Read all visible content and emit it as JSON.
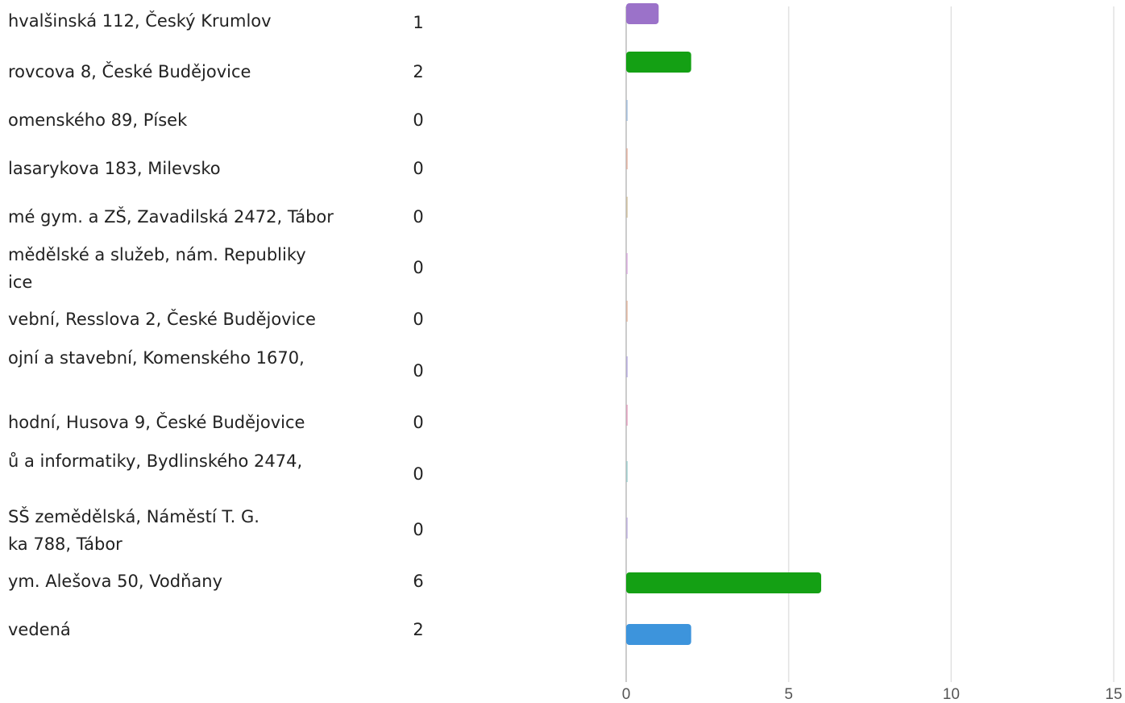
{
  "chart_data": {
    "type": "bar",
    "orientation": "horizontal",
    "categories": [
      [
        "hvalšinská 112, Český Krumlov"
      ],
      [
        "rovcova 8, České Budějovice"
      ],
      [
        "omenského 89, Písek"
      ],
      [
        "lasarykova 183, Milevsko"
      ],
      [
        "mé gym. a ZŠ, Zavadilská 2472, Tábor"
      ],
      [
        "mědělské a služeb, nám. Republiky",
        "ice"
      ],
      [
        "vební, Resslova 2, České Budějovice"
      ],
      [
        "ojní a stavební, Komenského 1670,"
      ],
      [
        "hodní, Husova 9, České Budějovice"
      ],
      [
        "ů a informatiky, Bydlinského 2474,"
      ],
      [
        "SŠ zemědělská, Náměstí T. G.",
        "ka 788, Tábor"
      ],
      [
        "ym. Alešova 50, Vodňany"
      ],
      [
        "vedená"
      ]
    ],
    "values": [
      1,
      2,
      0,
      0,
      0,
      0,
      0,
      0,
      0,
      0,
      0,
      6,
      2
    ],
    "colors": [
      "#9b72c9",
      "#14a014",
      "#8fb3d9",
      "#e0a08a",
      "#c8b48a",
      "#d49ad9",
      "#e0a88a",
      "#a99ad9",
      "#e08ab0",
      "#8ac4c4",
      "#b0a0d9",
      "#14a014",
      "#3d94dc"
    ],
    "xlim": [
      0,
      15
    ],
    "xticks": [
      0,
      5,
      10,
      15
    ],
    "grid": true
  }
}
